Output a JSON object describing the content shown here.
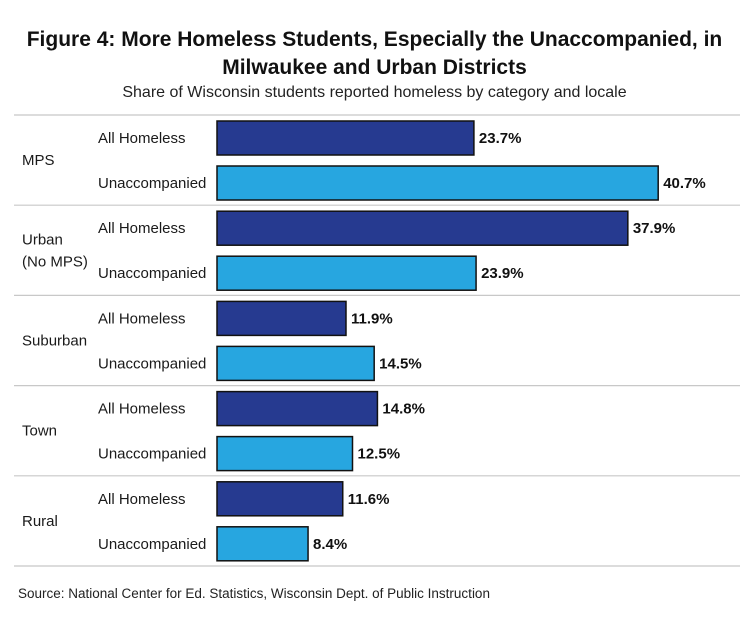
{
  "title_line1": "Figure 4: More Homeless Students, Especially the Unaccompanied, in",
  "title_line2": "Milwaukee and Urban Districts",
  "subtitle": "Share of Wisconsin students reported homeless by category and locale",
  "source": "Source: National Center for Ed. Statistics, Wisconsin Dept. of Public Instruction",
  "chart_data": {
    "type": "bar",
    "orientation": "horizontal",
    "groups": [
      {
        "name": "MPS",
        "name_lines": [
          "MPS"
        ],
        "values": [
          23.7,
          40.7
        ]
      },
      {
        "name": "Urban (No MPS)",
        "name_lines": [
          "Urban",
          "(No MPS)"
        ],
        "values": [
          37.9,
          23.9
        ]
      },
      {
        "name": "Suburban",
        "name_lines": [
          "Suburban"
        ],
        "values": [
          11.9,
          14.5
        ]
      },
      {
        "name": "Town",
        "name_lines": [
          "Town"
        ],
        "values": [
          14.8,
          12.5
        ]
      },
      {
        "name": "Rural",
        "name_lines": [
          "Rural"
        ],
        "values": [
          11.6,
          8.4
        ]
      }
    ],
    "categories": [
      "All Homeless",
      "Unaccompanied"
    ],
    "category_colors": [
      "#263a90",
      "#27a6e0"
    ],
    "value_suffix": "%",
    "xlim": [
      0,
      45
    ],
    "grid": false,
    "legend": "none"
  }
}
